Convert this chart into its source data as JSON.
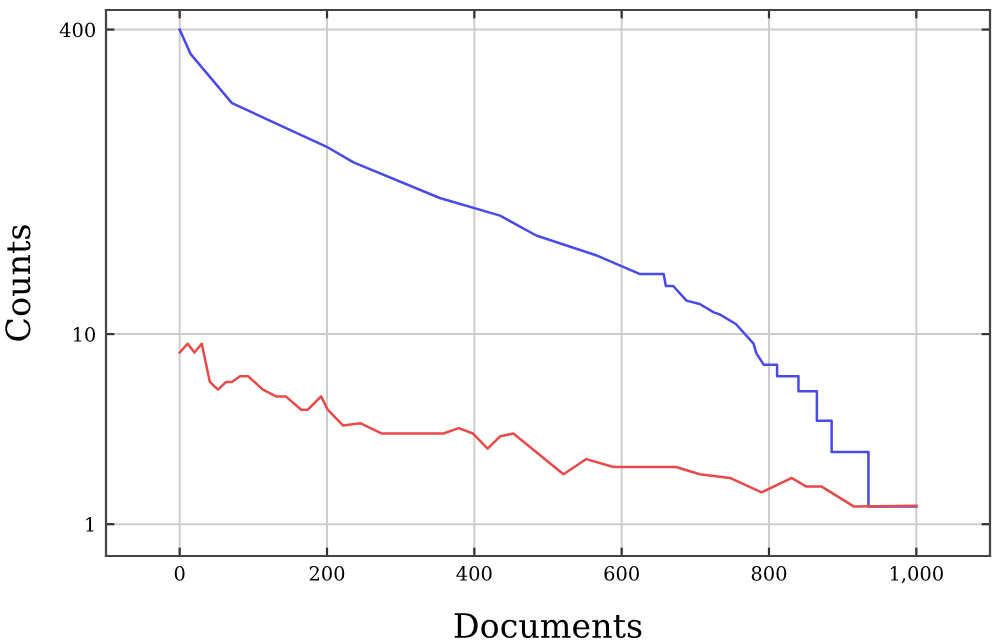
{
  "chart_data": {
    "type": "line",
    "xlabel": "Documents",
    "ylabel": "Counts",
    "log": "y",
    "grid": true,
    "line_style": "solid",
    "marker": "none",
    "xlim": [
      -100,
      1100
    ],
    "xticks": [
      0,
      200,
      400,
      600,
      800,
      {
        "value": 1000,
        "label": "1,000"
      }
    ],
    "ylim": [
      0.68,
      507
    ],
    "yticks": [
      1,
      10,
      400
    ],
    "series": [
      {
        "color": "#4a4ae6",
        "x": [
          0,
          15,
          71,
          199,
          236,
          353,
          435,
          484,
          565,
          625,
          657,
          660,
          670,
          688,
          706,
          725,
          733,
          755,
          779,
          783,
          793,
          811,
          811,
          840,
          840,
          865,
          865,
          885,
          885,
          935,
          935,
          1000
        ],
        "values": [
          400,
          297,
          164,
          97,
          80,
          52,
          42,
          33,
          26,
          20.7,
          20.7,
          17.9,
          17.9,
          15,
          14.4,
          13,
          12.7,
          11.3,
          8.9,
          7.9,
          6.9,
          6.9,
          6,
          6,
          5,
          5,
          3.5,
          3.5,
          2.4,
          2.4,
          1.24,
          1.24
        ]
      },
      {
        "color": "#e84a4a",
        "x": [
          0,
          11,
          20,
          30,
          41,
          52,
          63,
          71,
          82,
          93,
          113,
          131,
          144,
          165,
          174,
          192,
          201,
          222,
          245,
          274,
          358,
          379,
          398,
          418,
          435,
          453,
          521,
          552,
          589,
          674,
          706,
          747,
          790,
          831,
          850,
          871,
          915,
          1000
        ],
        "values": [
          8,
          8.9,
          8,
          8.9,
          5.6,
          5.1,
          5.6,
          5.6,
          6,
          6,
          5.1,
          4.7,
          4.7,
          4,
          4,
          4.7,
          4,
          3.3,
          3.4,
          3,
          3,
          3.2,
          3,
          2.5,
          2.9,
          3,
          1.83,
          2.2,
          2,
          2,
          1.83,
          1.75,
          1.47,
          1.75,
          1.58,
          1.58,
          1.24,
          1.25
        ]
      }
    ]
  }
}
